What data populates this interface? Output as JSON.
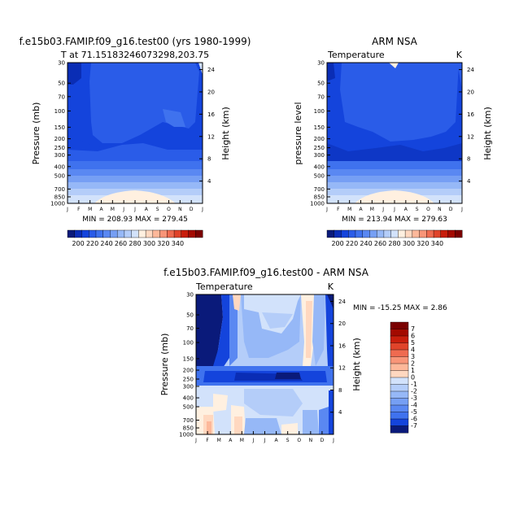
{
  "chart_data": [
    {
      "type": "heatmap",
      "title": "f.e15b03.FAMIP.f09_g16.test00 (yrs 1980-1999)",
      "subtitle": "T at 71.15183246073298,203.75",
      "ylabel": "Pressure (mb)",
      "ylabel_right": "Height (km)",
      "months": [
        "J",
        "F",
        "M",
        "A",
        "M",
        "J",
        "J",
        "A",
        "S",
        "O",
        "N",
        "D",
        "J"
      ],
      "pressure_ticks": [
        "30",
        "50",
        "70",
        "100",
        "150",
        "200",
        "250",
        "300",
        "400",
        "500",
        "700",
        "850",
        "1000"
      ],
      "height_ticks": [
        "4",
        "8",
        "12",
        "16",
        "20",
        "24"
      ],
      "stats": "MIN = 208.93 MAX = 279.45",
      "grid": false
    },
    {
      "type": "heatmap",
      "title": "ARM NSA",
      "left_label": "Temperature",
      "right_label": "K",
      "ylabel": "pressure level",
      "ylabel_right": "Height (km)",
      "months": [
        "J",
        "F",
        "M",
        "A",
        "M",
        "J",
        "J",
        "A",
        "S",
        "O",
        "N",
        "D",
        "J"
      ],
      "pressure_ticks": [
        "30",
        "50",
        "70",
        "100",
        "150",
        "200",
        "250",
        "300",
        "400",
        "500",
        "700",
        "850",
        "1000"
      ],
      "height_ticks": [
        "4",
        "8",
        "12",
        "16",
        "20",
        "24"
      ],
      "stats": "MIN = 213.94 MAX = 279.63",
      "grid": false
    },
    {
      "type": "heatmap",
      "title": "f.e15b03.FAMIP.f09_g16.test00 - ARM NSA",
      "left_label": "Temperature",
      "right_label": "K",
      "ylabel": "Pressure (mb)",
      "ylabel_right": "Height (km)",
      "months": [
        "J",
        "F",
        "M",
        "A",
        "M",
        "J",
        "J",
        "A",
        "S",
        "O",
        "N",
        "D",
        "J"
      ],
      "pressure_ticks": [
        "30",
        "50",
        "70",
        "100",
        "150",
        "200",
        "250",
        "300",
        "400",
        "500",
        "700",
        "850",
        "1000"
      ],
      "height_ticks": [
        "4",
        "8",
        "12",
        "16",
        "20",
        "24"
      ],
      "stats": "MIN = -15.25 MAX =   2.86",
      "grid": false
    }
  ],
  "temp_colorbar": {
    "labels": [
      "200",
      "220",
      "240",
      "260",
      "280",
      "300",
      "320",
      "340"
    ],
    "colors": [
      "#0a1a7a",
      "#0a2db5",
      "#1444dc",
      "#2a5ce8",
      "#3f72ee",
      "#5a88f2",
      "#769ff4",
      "#96b8f7",
      "#b4cdf9",
      "#d2e2fb",
      "#fff0e0",
      "#ffd8c0",
      "#fdb89a",
      "#f89578",
      "#ef6b50",
      "#e0442a",
      "#c81e0c",
      "#a30a00",
      "#7a0000"
    ]
  },
  "diff_colorbar": {
    "labels": [
      "7",
      "6",
      "5",
      "4",
      "3",
      "2",
      "1",
      "0",
      "-1",
      "-2",
      "-3",
      "-4",
      "-5",
      "-6",
      "-7"
    ],
    "colors": [
      "#7a0000",
      "#a30a00",
      "#c81e0c",
      "#e0442a",
      "#ef6b50",
      "#f89578",
      "#fdb89a",
      "#ffd8c0",
      "#d2e2fb",
      "#b4cdf9",
      "#96b8f7",
      "#769ff4",
      "#5a88f2",
      "#3f72ee",
      "#1444dc",
      "#0a1a7a"
    ]
  }
}
